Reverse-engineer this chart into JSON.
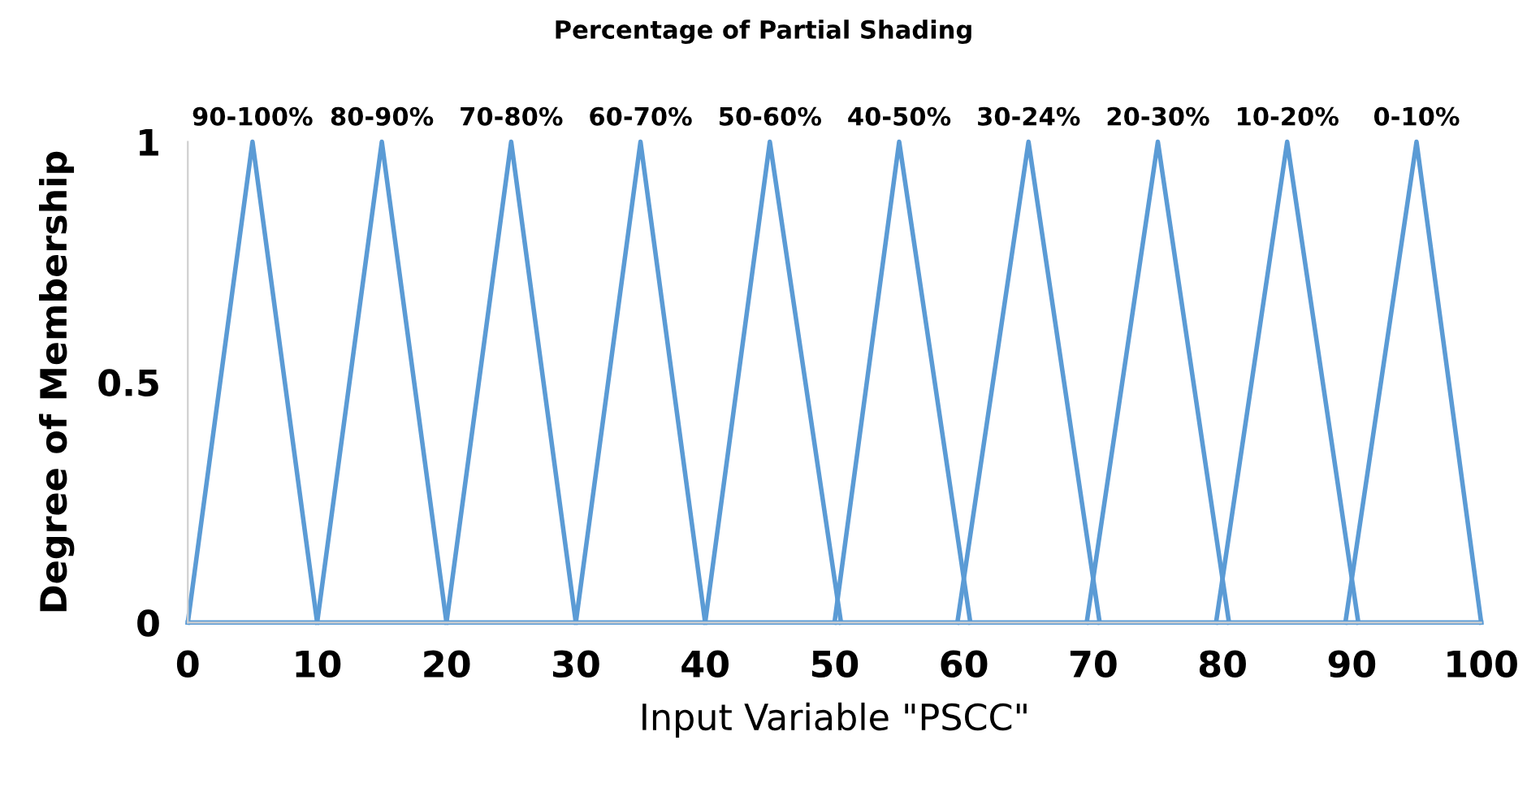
{
  "chart_data": {
    "type": "line",
    "title": "Percentage of Partial Shading",
    "xlabel": "Input Variable \"PSCC\"",
    "ylabel": "Degree of Membership",
    "series": [
      {
        "name": "90-100%",
        "color": "#5b9bd5",
        "x": [
          0,
          5,
          10
        ],
        "values": [
          0,
          1,
          0
        ]
      },
      {
        "name": "80-90%",
        "color": "#5b9bd5",
        "x": [
          10,
          15,
          20
        ],
        "values": [
          0,
          1,
          0
        ]
      },
      {
        "name": "70-80%",
        "color": "#5b9bd5",
        "x": [
          20,
          25,
          30
        ],
        "values": [
          0,
          1,
          0
        ]
      },
      {
        "name": "60-70%",
        "color": "#5b9bd5",
        "x": [
          30,
          35,
          40
        ],
        "values": [
          0,
          1,
          0
        ]
      },
      {
        "name": "50-60%",
        "color": "#5b9bd5",
        "x": [
          40,
          45,
          50.5
        ],
        "values": [
          0,
          1,
          0
        ]
      },
      {
        "name": "40-50%",
        "color": "#5b9bd5",
        "x": [
          50,
          55,
          60.5
        ],
        "values": [
          0,
          1,
          0
        ]
      },
      {
        "name": "30-24%",
        "color": "#5b9bd5",
        "x": [
          59.5,
          65,
          70.5
        ],
        "values": [
          0,
          1,
          0
        ]
      },
      {
        "name": "20-30%",
        "color": "#5b9bd5",
        "x": [
          69.5,
          75,
          80.5
        ],
        "values": [
          0,
          1,
          0
        ]
      },
      {
        "name": "10-20%",
        "color": "#5b9bd5",
        "x": [
          79.5,
          85,
          90.5
        ],
        "values": [
          0,
          1,
          0
        ]
      },
      {
        "name": "0-10%",
        "color": "#5b9bd5",
        "x": [
          89.5,
          95,
          100
        ],
        "values": [
          0,
          1,
          0
        ]
      },
      {
        "color": "#5b9bd5",
        "x": [
          0,
          100
        ],
        "values": [
          0,
          0
        ]
      }
    ],
    "xlim": [
      0,
      100
    ],
    "ylim": [
      0,
      1
    ],
    "xticks": [
      0,
      10,
      20,
      30,
      40,
      50,
      60,
      70,
      80,
      90,
      100
    ],
    "yticks": [
      0,
      0.5,
      1
    ],
    "grid": false,
    "legend": false,
    "marker": "none",
    "line_style": "solid"
  }
}
